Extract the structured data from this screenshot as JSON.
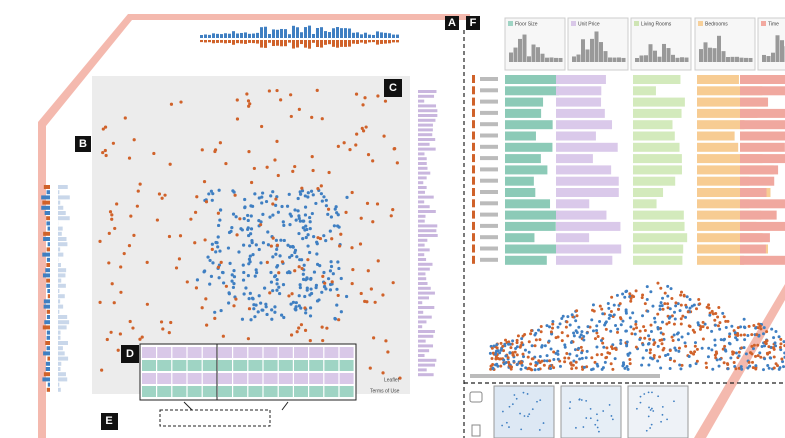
{
  "labels": {
    "a": "A",
    "f": "F",
    "b": "B",
    "c": "C",
    "d": "D",
    "e": "E"
  },
  "histograms": [
    {
      "title": "Floor Size"
    },
    {
      "title": "Unit Price"
    },
    {
      "title": "Living Rooms"
    },
    {
      "title": "Bedrooms"
    },
    {
      "title": "Time"
    }
  ],
  "map": {
    "attribution": [
      "Leaflet",
      "Terms of Use"
    ]
  }
}
